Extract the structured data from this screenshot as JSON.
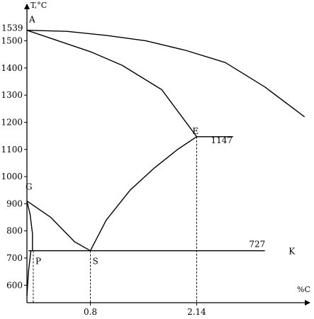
{
  "chart_data": {
    "type": "line",
    "title": "",
    "xlabel": "%C",
    "ylabel": "T,°C",
    "xlim": [
      0,
      3.5
    ],
    "ylim": [
      550,
      1600
    ],
    "grid": false,
    "x_ticks": [
      0.8,
      2.14
    ],
    "x_tick_labels": [
      "0.8",
      "2.14"
    ],
    "y_ticks": [
      600,
      700,
      800,
      900,
      1000,
      1100,
      1200,
      1300,
      1400,
      1500
    ],
    "y_tick_labels": [
      "600",
      "700",
      "800",
      "900",
      "1000",
      "1100",
      "1200",
      "1300",
      "1400",
      "1500"
    ],
    "series": [
      {
        "name": "",
        "x": [
          0,
          0.5,
          1.0,
          1.5,
          2.0,
          2.5,
          3.0,
          3.5
        ],
        "y": [
          1539,
          1535,
          1520,
          1500,
          1465,
          1420,
          1330,
          1220
        ]
      },
      {
        "name": "",
        "x": [
          0,
          0.8,
          1.2,
          1.7,
          2.14
        ],
        "y": [
          1539,
          1460,
          1410,
          1320,
          1147
        ]
      },
      {
        "name": "",
        "x": [
          0,
          0.3,
          0.6,
          0.8
        ],
        "y": [
          910,
          850,
          760,
          727
        ]
      },
      {
        "name": "",
        "x": [
          0.8,
          1.0,
          1.3,
          1.6,
          1.9,
          2.14
        ],
        "y": [
          727,
          840,
          950,
          1030,
          1100,
          1147
        ]
      },
      {
        "name": "",
        "x": [
          0,
          0.04,
          0.07,
          0.07
        ],
        "y": [
          910,
          860,
          790,
          727
        ]
      },
      {
        "name": "",
        "x": [
          0,
          0.02,
          0.05
        ],
        "y": [
          560,
          650,
          727
        ]
      },
      {
        "name": "",
        "x": [
          0.02,
          3.0
        ],
        "y": [
          727,
          727
        ]
      },
      {
        "name": "",
        "x": [
          2.14,
          2.6
        ],
        "y": [
          1147,
          1147
        ]
      }
    ],
    "drop_lines": [
      {
        "x": 0.8,
        "from": 727
      },
      {
        "x": 2.14,
        "from": 1147
      },
      {
        "x": 0.08,
        "from": 727
      }
    ],
    "points": [
      {
        "label": "A",
        "x": 0,
        "y": 1539
      },
      {
        "label": "E",
        "x": 2.14,
        "y": 1147
      },
      {
        "label": "G",
        "x": 0,
        "y": 910
      },
      {
        "label": "P",
        "x": 0.08,
        "y": 727
      },
      {
        "label": "S",
        "x": 0.8,
        "y": 727
      },
      {
        "label": "K",
        "x": 3.3,
        "y": 727
      }
    ],
    "annotations": [
      {
        "text": "1539",
        "x": 0,
        "y": 1539
      },
      {
        "text": "1147",
        "x": 2.14,
        "y": 1147
      },
      {
        "text": "727",
        "x": 2.8,
        "y": 727
      }
    ]
  }
}
